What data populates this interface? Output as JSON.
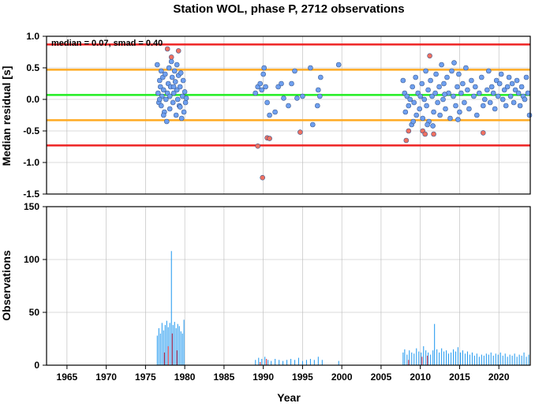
{
  "title": "Station WOL, phase P, 2712 observations",
  "chart_data": [
    {
      "type": "scatter",
      "ylabel": "Median residual [s]",
      "xlim": [
        1962.4,
        2024.0
      ],
      "ylim": [
        -1.5,
        1.0
      ],
      "yticks": [
        1.0,
        0.5,
        0.0,
        -0.5,
        -1.0,
        -1.5
      ],
      "ytick_labels": [
        "1.0",
        "0.5",
        "0.0",
        "-0.5",
        "-1.0",
        "-1.5"
      ],
      "grid": true,
      "annotation": "median = 0.07, smad = 0.40",
      "reference_lines": [
        {
          "y": 0.87,
          "color": "#ee2222"
        },
        {
          "y": 0.47,
          "color": "#ffaa22"
        },
        {
          "y": 0.07,
          "color": "#22ee22"
        },
        {
          "y": -0.33,
          "color": "#ffaa22"
        },
        {
          "y": -0.73,
          "color": "#ee2222"
        }
      ],
      "series": [
        {
          "color": "#6fa0f0",
          "points": [
            [
              1976.5,
              0.55
            ],
            [
              1976.6,
              0.1
            ],
            [
              1976.7,
              -0.05
            ],
            [
              1976.8,
              0.3
            ],
            [
              1976.9,
              0.2
            ],
            [
              1977.0,
              0.45
            ],
            [
              1977.0,
              -0.1
            ],
            [
              1977.1,
              0.05
            ],
            [
              1977.2,
              0.35
            ],
            [
              1977.3,
              0.15
            ],
            [
              1977.4,
              -0.2
            ],
            [
              1977.5,
              0.4
            ],
            [
              1977.6,
              0.0
            ],
            [
              1977.7,
              -0.35
            ],
            [
              1977.8,
              0.1
            ],
            [
              1977.9,
              0.25
            ],
            [
              1978.0,
              0.5
            ],
            [
              1978.1,
              -0.15
            ],
            [
              1978.2,
              0.2
            ],
            [
              1978.3,
              0.6
            ],
            [
              1978.4,
              0.35
            ],
            [
              1978.5,
              -0.05
            ],
            [
              1978.6,
              0.1
            ],
            [
              1978.7,
              0.45
            ],
            [
              1978.8,
              0.28
            ],
            [
              1978.9,
              -0.25
            ],
            [
              1979.0,
              0.15
            ],
            [
              1979.0,
              0.55
            ],
            [
              1979.1,
              0.0
            ],
            [
              1979.2,
              0.38
            ],
            [
              1979.3,
              -0.1
            ],
            [
              1979.4,
              0.2
            ],
            [
              1979.5,
              0.42
            ],
            [
              1979.6,
              -0.3
            ],
            [
              1979.7,
              0.05
            ],
            [
              1979.8,
              0.3
            ],
            [
              1979.9,
              -0.2
            ],
            [
              1980.0,
              0.12
            ],
            [
              1980.1,
              -0.05
            ],
            [
              1980.2,
              0.02
            ],
            [
              1976.8,
              0.0
            ],
            [
              1977.3,
              -0.25
            ],
            [
              1978.1,
              0.05
            ],
            [
              1978.6,
              0.2
            ],
            [
              1979.4,
              -0.12
            ],
            [
              1989.0,
              0.1
            ],
            [
              1989.3,
              0.2
            ],
            [
              1989.6,
              0.25
            ],
            [
              1989.8,
              0.15
            ],
            [
              1990.0,
              0.4
            ],
            [
              1990.1,
              0.5
            ],
            [
              1990.3,
              0.2
            ],
            [
              1990.5,
              -0.05
            ],
            [
              1990.8,
              -0.25
            ],
            [
              1991.5,
              -0.2
            ],
            [
              1991.9,
              0.2
            ],
            [
              1992.3,
              0.25
            ],
            [
              1992.6,
              0.02
            ],
            [
              1993.2,
              -0.1
            ],
            [
              1993.6,
              0.25
            ],
            [
              1994.0,
              0.45
            ],
            [
              1995.0,
              0.05
            ],
            [
              1996.0,
              0.5
            ],
            [
              1996.3,
              -0.4
            ],
            [
              1996.9,
              -0.1
            ],
            [
              1997.0,
              0.15
            ],
            [
              1997.3,
              0.35
            ],
            [
              1999.6,
              0.55
            ],
            [
              1994.3,
              0.02
            ],
            [
              1997.2,
              0.05
            ],
            [
              2007.8,
              0.3
            ],
            [
              2008.0,
              0.1
            ],
            [
              2008.1,
              -0.2
            ],
            [
              2008.3,
              0.05
            ],
            [
              2008.5,
              -0.1
            ],
            [
              2008.7,
              0.0
            ],
            [
              2008.9,
              -0.4
            ],
            [
              2009.0,
              0.2
            ],
            [
              2009.2,
              -0.05
            ],
            [
              2009.4,
              0.35
            ],
            [
              2009.5,
              -0.25
            ],
            [
              2009.7,
              0.1
            ],
            [
              2009.9,
              -0.15
            ],
            [
              2010.0,
              0.05
            ],
            [
              2010.2,
              0.25
            ],
            [
              2010.3,
              -0.3
            ],
            [
              2010.5,
              0.0
            ],
            [
              2010.7,
              0.45
            ],
            [
              2010.8,
              -0.1
            ],
            [
              2011.0,
              0.15
            ],
            [
              2011.1,
              -0.35
            ],
            [
              2011.3,
              0.3
            ],
            [
              2011.5,
              0.05
            ],
            [
              2011.7,
              -0.2
            ],
            [
              2011.9,
              0.1
            ],
            [
              2012.0,
              0.4
            ],
            [
              2012.2,
              -0.05
            ],
            [
              2012.4,
              0.2
            ],
            [
              2012.5,
              -0.25
            ],
            [
              2012.7,
              0.55
            ],
            [
              2012.9,
              0.0
            ],
            [
              2013.0,
              0.25
            ],
            [
              2013.2,
              -0.15
            ],
            [
              2013.4,
              0.35
            ],
            [
              2013.6,
              0.1
            ],
            [
              2013.8,
              -0.3
            ],
            [
              2014.0,
              0.45
            ],
            [
              2014.2,
              0.05
            ],
            [
              2014.3,
              0.58
            ],
            [
              2014.5,
              -0.1
            ],
            [
              2014.7,
              0.2
            ],
            [
              2014.9,
              0.4
            ],
            [
              2015.0,
              -0.2
            ],
            [
              2015.2,
              0.1
            ],
            [
              2015.4,
              0.25
            ],
            [
              2015.6,
              -0.05
            ],
            [
              2015.8,
              0.5
            ],
            [
              2016.0,
              0.15
            ],
            [
              2016.2,
              -0.15
            ],
            [
              2016.5,
              0.3
            ],
            [
              2016.8,
              0.05
            ],
            [
              2017.0,
              0.2
            ],
            [
              2017.2,
              -0.25
            ],
            [
              2017.5,
              0.1
            ],
            [
              2017.8,
              0.35
            ],
            [
              2018.0,
              -0.1
            ],
            [
              2018.2,
              0.0
            ],
            [
              2018.5,
              0.15
            ],
            [
              2018.7,
              0.45
            ],
            [
              2018.9,
              -0.05
            ],
            [
              2019.1,
              0.2
            ],
            [
              2019.3,
              0.1
            ],
            [
              2019.5,
              -0.15
            ],
            [
              2019.7,
              0.3
            ],
            [
              2019.9,
              0.05
            ],
            [
              2020.1,
              0.25
            ],
            [
              2020.3,
              0.4
            ],
            [
              2020.5,
              0.0
            ],
            [
              2020.7,
              0.15
            ],
            [
              2020.9,
              -0.1
            ],
            [
              2021.1,
              0.2
            ],
            [
              2021.3,
              0.35
            ],
            [
              2021.5,
              0.05
            ],
            [
              2021.7,
              0.25
            ],
            [
              2021.9,
              -0.05
            ],
            [
              2022.1,
              0.15
            ],
            [
              2022.3,
              0.3
            ],
            [
              2022.5,
              0.1
            ],
            [
              2022.7,
              -0.1
            ],
            [
              2022.9,
              0.2
            ],
            [
              2023.1,
              0.05
            ],
            [
              2023.3,
              0.0
            ],
            [
              2023.5,
              0.35
            ],
            [
              2023.7,
              0.1
            ],
            [
              2023.9,
              -0.25
            ],
            [
              2009.1,
              -0.35
            ],
            [
              2010.9,
              -0.4
            ],
            [
              2011.6,
              -0.42
            ],
            [
              2013.1,
              0.08
            ],
            [
              2014.8,
              -0.32
            ]
          ]
        },
        {
          "color": "#f07060",
          "points": [
            [
              1977.8,
              0.8
            ],
            [
              1978.3,
              0.67
            ],
            [
              1979.2,
              0.77
            ],
            [
              1989.3,
              -0.74
            ],
            [
              1989.9,
              -1.24
            ],
            [
              1990.5,
              -0.61
            ],
            [
              1990.8,
              -0.62
            ],
            [
              1994.7,
              -0.52
            ],
            [
              2008.2,
              -0.65
            ],
            [
              2008.5,
              -0.5
            ],
            [
              2010.3,
              -0.5
            ],
            [
              2010.6,
              -0.55
            ],
            [
              2011.2,
              0.69
            ],
            [
              2011.7,
              -0.55
            ],
            [
              2018.0,
              -0.53
            ]
          ]
        }
      ]
    },
    {
      "type": "bar",
      "xlabel": "Year",
      "ylabel": "Observations",
      "xlim": [
        1962.4,
        2024.0
      ],
      "ylim": [
        0,
        150
      ],
      "yticks": [
        0,
        50,
        100,
        150
      ],
      "ytick_labels": [
        "0",
        "50",
        "100",
        "150"
      ],
      "xticks": [
        1965,
        1970,
        1975,
        1980,
        1985,
        1990,
        1995,
        2000,
        2005,
        2010,
        2015,
        2020
      ],
      "xtick_labels": [
        "1965",
        "1970",
        "1975",
        "1980",
        "1985",
        "1990",
        "1995",
        "2000",
        "2005",
        "2010",
        "2015",
        "2020"
      ],
      "grid": true,
      "bar_color": "#2f9ff0",
      "outlier_color": "#dd3344",
      "bars": [
        [
          1976.5,
          28
        ],
        [
          1976.7,
          35
        ],
        [
          1976.9,
          30
        ],
        [
          1977.1,
          40
        ],
        [
          1977.3,
          33
        ],
        [
          1977.5,
          38
        ],
        [
          1977.7,
          42
        ],
        [
          1977.9,
          36
        ],
        [
          1978.1,
          40
        ],
        [
          1978.3,
          108
        ],
        [
          1978.5,
          38
        ],
        [
          1978.7,
          41
        ],
        [
          1978.9,
          35
        ],
        [
          1979.1,
          39
        ],
        [
          1979.3,
          37
        ],
        [
          1979.5,
          32
        ],
        [
          1979.7,
          30
        ],
        [
          1979.9,
          43
        ],
        [
          1989.0,
          5
        ],
        [
          1989.4,
          7
        ],
        [
          1989.8,
          6
        ],
        [
          1990.2,
          8
        ],
        [
          1990.6,
          5
        ],
        [
          1991.0,
          4
        ],
        [
          1991.5,
          6
        ],
        [
          1992.0,
          5
        ],
        [
          1992.5,
          4
        ],
        [
          1993.0,
          5
        ],
        [
          1993.5,
          6
        ],
        [
          1994.0,
          5
        ],
        [
          1994.5,
          7
        ],
        [
          1995.0,
          4
        ],
        [
          1995.5,
          5
        ],
        [
          1996.0,
          6
        ],
        [
          1996.5,
          5
        ],
        [
          1997.0,
          8
        ],
        [
          1997.5,
          5
        ],
        [
          1999.6,
          4
        ],
        [
          2007.8,
          12
        ],
        [
          2008.0,
          15
        ],
        [
          2008.3,
          10
        ],
        [
          2008.6,
          14
        ],
        [
          2008.9,
          12
        ],
        [
          2009.2,
          11
        ],
        [
          2009.5,
          16
        ],
        [
          2009.8,
          13
        ],
        [
          2010.1,
          12
        ],
        [
          2010.4,
          18
        ],
        [
          2010.7,
          14
        ],
        [
          2011.0,
          12
        ],
        [
          2011.3,
          10
        ],
        [
          2011.6,
          14
        ],
        [
          2011.8,
          39
        ],
        [
          2012.1,
          15
        ],
        [
          2012.4,
          12
        ],
        [
          2012.7,
          16
        ],
        [
          2013.0,
          13
        ],
        [
          2013.3,
          14
        ],
        [
          2013.6,
          11
        ],
        [
          2013.9,
          12
        ],
        [
          2014.2,
          15
        ],
        [
          2014.5,
          13
        ],
        [
          2014.8,
          17
        ],
        [
          2015.1,
          12
        ],
        [
          2015.4,
          14
        ],
        [
          2015.7,
          11
        ],
        [
          2016.0,
          13
        ],
        [
          2016.3,
          10
        ],
        [
          2016.6,
          12
        ],
        [
          2016.9,
          9
        ],
        [
          2017.2,
          11
        ],
        [
          2017.5,
          8
        ],
        [
          2017.8,
          10
        ],
        [
          2018.1,
          9
        ],
        [
          2018.4,
          11
        ],
        [
          2018.7,
          10
        ],
        [
          2019.0,
          12
        ],
        [
          2019.3,
          9
        ],
        [
          2019.6,
          11
        ],
        [
          2019.9,
          10
        ],
        [
          2020.2,
          12
        ],
        [
          2020.5,
          9
        ],
        [
          2020.8,
          11
        ],
        [
          2021.1,
          8
        ],
        [
          2021.4,
          10
        ],
        [
          2021.7,
          9
        ],
        [
          2022.0,
          11
        ],
        [
          2022.3,
          8
        ],
        [
          2022.6,
          10
        ],
        [
          2022.9,
          9
        ],
        [
          2023.2,
          12
        ],
        [
          2023.5,
          8
        ],
        [
          2023.8,
          10
        ]
      ],
      "outlier_bars": [
        [
          1977.4,
          12
        ],
        [
          1977.9,
          18
        ],
        [
          1978.4,
          30
        ],
        [
          1979.0,
          14
        ],
        [
          1989.6,
          3
        ],
        [
          1990.4,
          6
        ],
        [
          2008.5,
          5
        ],
        [
          2010.2,
          8
        ],
        [
          2010.9,
          9
        ]
      ]
    }
  ]
}
